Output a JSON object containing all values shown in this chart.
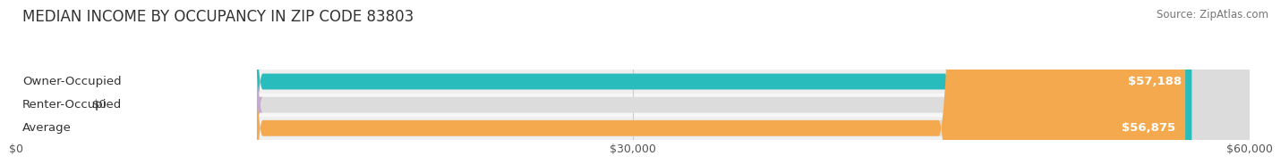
{
  "title": "MEDIAN INCOME BY OCCUPANCY IN ZIP CODE 83803",
  "source": "Source: ZipAtlas.com",
  "categories": [
    "Owner-Occupied",
    "Renter-Occupied",
    "Average"
  ],
  "values": [
    57188,
    0,
    56875
  ],
  "bar_colors": [
    "#29bcbd",
    "#c3aad1",
    "#f5a94e"
  ],
  "bar_bg_color": "#dcdcdc",
  "row_bg_colors": [
    "#efefef",
    "#f7f7f7",
    "#efefef"
  ],
  "xlim": [
    0,
    60000
  ],
  "xticks": [
    0,
    30000,
    60000
  ],
  "xtick_labels": [
    "$0",
    "$30,000",
    "$60,000"
  ],
  "value_labels": [
    "$57,188",
    "$0",
    "$56,875"
  ],
  "title_fontsize": 12,
  "source_fontsize": 8.5,
  "label_fontsize": 9.5,
  "value_fontsize": 9.5,
  "bar_height": 0.68,
  "figure_bg": "#ffffff",
  "grid_color": "#cccccc"
}
